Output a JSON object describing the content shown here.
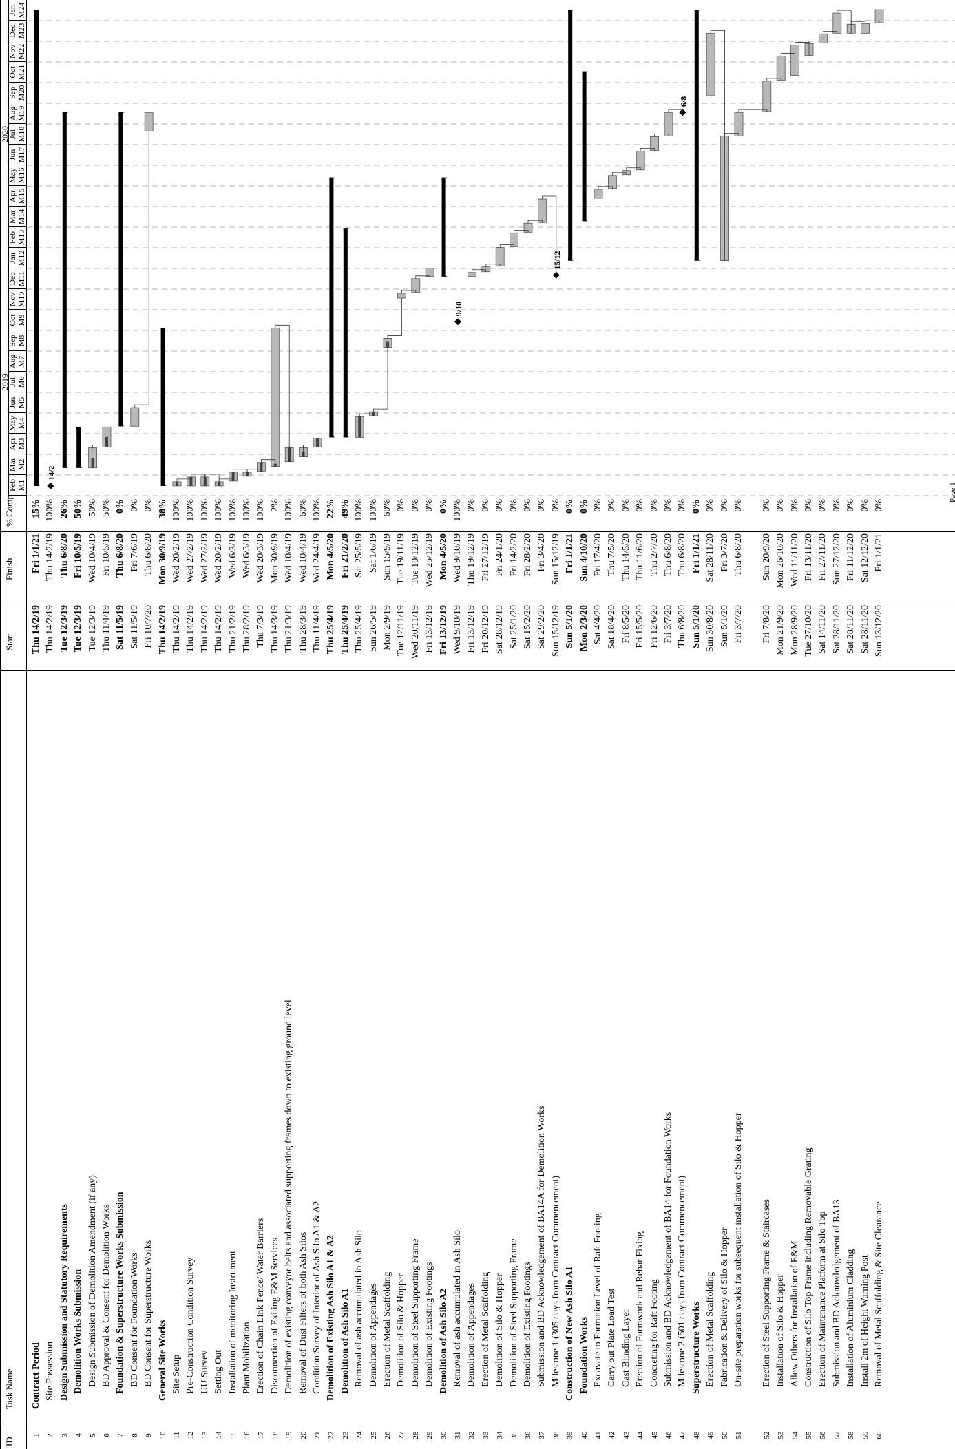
{
  "columns": {
    "id": "ID",
    "name": "Task Name",
    "start": "Start",
    "finish": "Finish",
    "comp": "% Comp."
  },
  "years": [
    "2019",
    "2020"
  ],
  "months": [
    {
      "m": "Feb",
      "n": "M1"
    },
    {
      "m": "Mar",
      "n": "M2"
    },
    {
      "m": "Apr",
      "n": "M3"
    },
    {
      "m": "May",
      "n": "M4"
    },
    {
      "m": "Jun",
      "n": "M5"
    },
    {
      "m": "Jul",
      "n": "M6"
    },
    {
      "m": "Aug",
      "n": "M7"
    },
    {
      "m": "Sep",
      "n": "M8"
    },
    {
      "m": "Oct",
      "n": "M9"
    },
    {
      "m": "Nov",
      "n": "M10"
    },
    {
      "m": "Dec",
      "n": "M11"
    },
    {
      "m": "Jan",
      "n": "M12"
    },
    {
      "m": "Feb",
      "n": "M13"
    },
    {
      "m": "Mar",
      "n": "M14"
    },
    {
      "m": "Apr",
      "n": "M15"
    },
    {
      "m": "May",
      "n": "M16"
    },
    {
      "m": "Jun",
      "n": "M17"
    },
    {
      "m": "Jul",
      "n": "M18"
    },
    {
      "m": "Aug",
      "n": "M19"
    },
    {
      "m": "Sep",
      "n": "M20"
    },
    {
      "m": "Oct",
      "n": "M21"
    },
    {
      "m": "Nov",
      "n": "M22"
    },
    {
      "m": "Dec",
      "n": "M23"
    },
    {
      "m": "Jan",
      "n": "M24"
    }
  ],
  "footer": "Page 1",
  "tasks": [
    {
      "id": "1",
      "name": "Contract Period",
      "start": "Thu 14/2/19",
      "finish": "Fri 1/1/21",
      "comp": "15%",
      "lvl": 0,
      "sum": true,
      "s": 0,
      "e": 687
    },
    {
      "id": "2",
      "name": "Site Possession",
      "start": "Thu 14/2/19",
      "finish": "Thu 14/2/19",
      "comp": "100%",
      "lvl": 1,
      "ms": true,
      "label": "14/2",
      "s": 0,
      "e": 0
    },
    {
      "id": "3",
      "name": "Design Submission and Statutory Requirements",
      "start": "Tue 12/3/19",
      "finish": "Thu 6/8/20",
      "comp": "26%",
      "lvl": 1,
      "sum": true,
      "s": 26,
      "e": 539
    },
    {
      "id": "4",
      "name": "Demolition Works Submission",
      "start": "Tue 12/3/19",
      "finish": "Fri 10/5/19",
      "comp": "50%",
      "lvl": 2,
      "sum": true,
      "s": 26,
      "e": 85
    },
    {
      "id": "5",
      "name": "Design Submission of Demolition Amendment (if any)",
      "start": "Tue 12/3/19",
      "finish": "Wed 10/4/19",
      "comp": "50%",
      "lvl": 3,
      "s": 26,
      "e": 55
    },
    {
      "id": "6",
      "name": "BD Approval & Consent for Demolition Works",
      "start": "Thu 11/4/19",
      "finish": "Fri 10/5/19",
      "comp": "50%",
      "lvl": 3,
      "s": 56,
      "e": 85
    },
    {
      "id": "7",
      "name": "Foundation & Superstructure Works Submission",
      "start": "Sat 11/5/19",
      "finish": "Thu 6/8/20",
      "comp": "0%",
      "lvl": 2,
      "sum": true,
      "s": 86,
      "e": 539
    },
    {
      "id": "8",
      "name": "BD Consent for Foundation Works",
      "start": "Sat 11/5/19",
      "finish": "Fri 7/6/19",
      "comp": "0%",
      "lvl": 3,
      "s": 86,
      "e": 113
    },
    {
      "id": "9",
      "name": "BD Consent for Superstructure Works",
      "start": "Fri 10/7/20",
      "finish": "Thu 6/8/20",
      "comp": "0%",
      "lvl": 3,
      "s": 512,
      "e": 539
    },
    {
      "id": "10",
      "name": "General Site Works",
      "start": "Thu 14/2/19",
      "finish": "Mon 30/9/19",
      "comp": "38%",
      "lvl": 1,
      "sum": true,
      "s": 0,
      "e": 228
    },
    {
      "id": "11",
      "name": "Site Setup",
      "start": "Thu 14/2/19",
      "finish": "Wed 20/2/19",
      "comp": "100%",
      "lvl": 2,
      "s": 0,
      "e": 6
    },
    {
      "id": "12",
      "name": "Pre-Construction Condition Survey",
      "start": "Thu 14/2/19",
      "finish": "Wed 27/2/19",
      "comp": "100%",
      "lvl": 2,
      "s": 0,
      "e": 13
    },
    {
      "id": "13",
      "name": "UU Survey",
      "start": "Thu 14/2/19",
      "finish": "Wed 27/2/19",
      "comp": "100%",
      "lvl": 2,
      "s": 0,
      "e": 13
    },
    {
      "id": "14",
      "name": "Setting Out",
      "start": "Thu 14/2/19",
      "finish": "Wed 20/2/19",
      "comp": "100%",
      "lvl": 2,
      "s": 0,
      "e": 6
    },
    {
      "id": "15",
      "name": "Installation of monitoring Instrument",
      "start": "Thu 21/2/19",
      "finish": "Wed 6/3/19",
      "comp": "100%",
      "lvl": 2,
      "s": 7,
      "e": 20
    },
    {
      "id": "16",
      "name": "Plant Mobilization",
      "start": "Thu 28/2/19",
      "finish": "Wed 6/3/19",
      "comp": "100%",
      "lvl": 2,
      "s": 14,
      "e": 20
    },
    {
      "id": "17",
      "name": "Erection of Chain Link Fence/ Water Barriers",
      "start": "Thu 7/3/19",
      "finish": "Wed 20/3/19",
      "comp": "100%",
      "lvl": 2,
      "s": 21,
      "e": 34
    },
    {
      "id": "18",
      "name": "Disconnection of Exiting E&M Services",
      "start": "Thu 14/3/19",
      "finish": "Mon 30/9/19",
      "comp": "2%",
      "lvl": 2,
      "s": 28,
      "e": 228
    },
    {
      "id": "19",
      "name": "Demolition of existing conveyor belts and associated supporting frames down to existing ground level",
      "start": "Thu 21/3/19",
      "finish": "Wed 10/4/19",
      "comp": "100%",
      "lvl": 2,
      "s": 35,
      "e": 55
    },
    {
      "id": "20",
      "name": "Removal of Dust Filters of both Ash Silos",
      "start": "Thu 28/3/19",
      "finish": "Wed 10/4/19",
      "comp": "60%",
      "lvl": 2,
      "s": 42,
      "e": 55
    },
    {
      "id": "21",
      "name": "Condition Survey of Interior of Ash Silo A1 & A2",
      "start": "Thu 11/4/19",
      "finish": "Wed 24/4/19",
      "comp": "100%",
      "lvl": 2,
      "s": 56,
      "e": 69
    },
    {
      "id": "22",
      "name": "Demolition of Existing Ash Silo A1 & A2",
      "start": "Thu 25/4/19",
      "finish": "Mon 4/5/20",
      "comp": "22%",
      "lvl": 1,
      "sum": true,
      "s": 70,
      "e": 445
    },
    {
      "id": "23",
      "name": "Demolition of Ash Silo A1",
      "start": "Thu 25/4/19",
      "finish": "Fri 21/2/20",
      "comp": "49%",
      "lvl": 2,
      "sum": true,
      "s": 70,
      "e": 372
    },
    {
      "id": "24",
      "name": "Removal of ash accumulated in Ash Silo",
      "start": "Thu 25/4/19",
      "finish": "Sat 25/5/19",
      "comp": "100%",
      "lvl": 3,
      "s": 70,
      "e": 100
    },
    {
      "id": "25",
      "name": "Demolition of Appendages",
      "start": "Sun 26/5/19",
      "finish": "Sat 1/6/19",
      "comp": "100%",
      "lvl": 3,
      "s": 101,
      "e": 107
    },
    {
      "id": "26",
      "name": "Erection of Metal Scaffolding",
      "start": "Mon 2/9/19",
      "finish": "Sun 15/9/19",
      "comp": "60%",
      "lvl": 3,
      "s": 200,
      "e": 213
    },
    {
      "id": "27",
      "name": "Demolition of Silo & Hopper",
      "start": "Tue 12/11/19",
      "finish": "Tue 19/11/19",
      "comp": "0%",
      "lvl": 3,
      "s": 271,
      "e": 278
    },
    {
      "id": "28",
      "name": "Demolition of Steel Supporting Frame",
      "start": "Wed 20/11/19",
      "finish": "Tue 10/12/19",
      "comp": "0%",
      "lvl": 3,
      "s": 279,
      "e": 299
    },
    {
      "id": "29",
      "name": "Demolition of Existing Footings",
      "start": "Fri 13/12/19",
      "finish": "Wed 25/12/19",
      "comp": "0%",
      "lvl": 3,
      "s": 302,
      "e": 314
    },
    {
      "id": "30",
      "name": "Demolition of Ash Silo A2",
      "start": "Fri 13/12/19",
      "finish": "Mon 4/5/20",
      "comp": "0%",
      "lvl": 2,
      "sum": true,
      "s": 302,
      "e": 445
    },
    {
      "id": "31",
      "name": "Removal of ash accumulated in Ash Silo",
      "start": "Wed 9/10/19",
      "finish": "Wed 9/10/19",
      "comp": "100%",
      "lvl": 3,
      "ms": true,
      "label": "9/10",
      "s": 237,
      "e": 237
    },
    {
      "id": "32",
      "name": "Demolition of Appendages",
      "start": "Fri 13/12/19",
      "finish": "Thu 19/12/19",
      "comp": "0%",
      "lvl": 3,
      "s": 302,
      "e": 308
    },
    {
      "id": "33",
      "name": "Erection of Metal Scaffolding",
      "start": "Fri 20/12/19",
      "finish": "Fri 27/12/19",
      "comp": "0%",
      "lvl": 3,
      "s": 309,
      "e": 316
    },
    {
      "id": "34",
      "name": "Demolition of Silo & Hopper",
      "start": "Sat 28/12/19",
      "finish": "Fri 24/1/20",
      "comp": "0%",
      "lvl": 3,
      "s": 317,
      "e": 344
    },
    {
      "id": "35",
      "name": "Demolition of Steel Supporting Frame",
      "start": "Sat 25/1/20",
      "finish": "Fri 14/2/20",
      "comp": "0%",
      "lvl": 3,
      "s": 345,
      "e": 365
    },
    {
      "id": "36",
      "name": "Demolition of Existing Footings",
      "start": "Sat 15/2/20",
      "finish": "Fri 28/2/20",
      "comp": "0%",
      "lvl": 3,
      "s": 366,
      "e": 379
    },
    {
      "id": "37",
      "name": "Submission and BD Acknowledgement of BA14A for Demolition Works",
      "start": "Sat 29/2/20",
      "finish": "Fri 3/4/20",
      "comp": "0%",
      "lvl": 3,
      "s": 380,
      "e": 414
    },
    {
      "id": "38",
      "name": "Milestone 1 (305 days from Contract Commencement)",
      "start": "Sun 15/12/19",
      "finish": "Sun 15/12/19",
      "comp": "0%",
      "lvl": 3,
      "ms": true,
      "label": "15/12",
      "s": 304,
      "e": 304
    },
    {
      "id": "39",
      "name": "Construction of New Ash Silo A1",
      "start": "Sun 5/1/20",
      "finish": "Fri 1/1/21",
      "comp": "0%",
      "lvl": 1,
      "sum": true,
      "s": 325,
      "e": 687
    },
    {
      "id": "40",
      "name": "Foundation Works",
      "start": "Mon 2/3/20",
      "finish": "Sun 4/10/20",
      "comp": "0%",
      "lvl": 2,
      "sum": true,
      "s": 382,
      "e": 598
    },
    {
      "id": "41",
      "name": "Excavate to Formation Level of Raft Footing",
      "start": "Sat 4/4/20",
      "finish": "Fri 17/4/20",
      "comp": "0%",
      "lvl": 3,
      "s": 415,
      "e": 428
    },
    {
      "id": "42",
      "name": "Carry out Plate Load Test",
      "start": "Sat 18/4/20",
      "finish": "Thu 7/5/20",
      "comp": "0%",
      "lvl": 3,
      "s": 429,
      "e": 448
    },
    {
      "id": "43",
      "name": "Cast Blinding Layer",
      "start": "Fri 8/5/20",
      "finish": "Thu 14/5/20",
      "comp": "0%",
      "lvl": 3,
      "s": 449,
      "e": 455
    },
    {
      "id": "44",
      "name": "Erection of Formwork and Rebar Fixing",
      "start": "Fri 15/5/20",
      "finish": "Thu 11/6/20",
      "comp": "0%",
      "lvl": 3,
      "s": 456,
      "e": 483
    },
    {
      "id": "45",
      "name": "Concreting for Raft Footing",
      "start": "Fri 12/6/20",
      "finish": "Thu 2/7/20",
      "comp": "0%",
      "lvl": 3,
      "s": 484,
      "e": 504
    },
    {
      "id": "46",
      "name": "Submission and BD Acknowledgement of BA14 for Foundation Works",
      "start": "Fri 3/7/20",
      "finish": "Thu 6/8/20",
      "comp": "0%",
      "lvl": 3,
      "s": 505,
      "e": 539
    },
    {
      "id": "47",
      "name": "Milestone 2 (501 days from Contract Commencement)",
      "start": "Thu 6/8/20",
      "finish": "Thu 6/8/20",
      "comp": "0%",
      "lvl": 3,
      "ms": true,
      "label": "6/8",
      "s": 539,
      "e": 539
    },
    {
      "id": "48",
      "name": "Superstructure Works",
      "start": "Sun 5/1/20",
      "finish": "Fri 1/1/21",
      "comp": "0%",
      "lvl": 2,
      "sum": true,
      "s": 325,
      "e": 687
    },
    {
      "id": "49",
      "name": "Erection of Metal Scaffolding",
      "start": "Sun 30/8/20",
      "finish": "Sat 28/11/20",
      "comp": "0%",
      "lvl": 3,
      "s": 563,
      "e": 653
    },
    {
      "id": "50",
      "name": "Fabrication & Delivery of Silo & Hopper",
      "start": "Sun 5/1/20",
      "finish": "Fri 3/7/20",
      "comp": "0%",
      "lvl": 3,
      "s": 325,
      "e": 505
    },
    {
      "id": "51",
      "name": "On-site preparation works for subsequent installation of Silo & Hopper",
      "start": "Fri 3/7/20",
      "finish": "Thu 6/8/20",
      "comp": "0%",
      "lvl": 3,
      "s": 505,
      "e": 539
    },
    {
      "id": "52",
      "name": "Erection of Steel Supporting Frame & Staircases",
      "start": "Fri 7/8/20",
      "finish": "Sun 20/9/20",
      "comp": "0%",
      "lvl": 3,
      "s": 540,
      "e": 584,
      "gap": true
    },
    {
      "id": "53",
      "name": "Installation of Silo & Hopper",
      "start": "Mon 21/9/20",
      "finish": "Mon 26/10/20",
      "comp": "0%",
      "lvl": 3,
      "s": 585,
      "e": 620
    },
    {
      "id": "54",
      "name": "Allow Others for Installation of E&M",
      "start": "Mon 28/9/20",
      "finish": "Wed 11/11/20",
      "comp": "0%",
      "lvl": 3,
      "s": 592,
      "e": 636
    },
    {
      "id": "55",
      "name": "Construction of Silo Top Frame including Removable Grating",
      "start": "Tue 27/10/20",
      "finish": "Fri 13/11/20",
      "comp": "0%",
      "lvl": 3,
      "s": 621,
      "e": 638
    },
    {
      "id": "56",
      "name": "Erection of Maintenance Platform at Silo Top",
      "start": "Sat 14/11/20",
      "finish": "Fri 27/11/20",
      "comp": "0%",
      "lvl": 3,
      "s": 639,
      "e": 652
    },
    {
      "id": "57",
      "name": "Submission and BD Acknowledgement of BA13",
      "start": "Sat 28/11/20",
      "finish": "Sun 27/12/20",
      "comp": "0%",
      "lvl": 3,
      "s": 653,
      "e": 682
    },
    {
      "id": "58",
      "name": "Installation of Aluminium Cladding",
      "start": "Sat 28/11/20",
      "finish": "Fri 11/12/20",
      "comp": "0%",
      "lvl": 3,
      "s": 653,
      "e": 666
    },
    {
      "id": "59",
      "name": "Install 2m of Height Warning Post",
      "start": "Sat 28/11/20",
      "finish": "Sat 12/12/20",
      "comp": "0%",
      "lvl": 3,
      "s": 653,
      "e": 667
    },
    {
      "id": "60",
      "name": "Removal of Metal Scaffolding & Site Clearance",
      "start": "Sun 13/12/20",
      "finish": "Fri 1/1/21",
      "comp": "0%",
      "lvl": 3,
      "s": 668,
      "e": 687
    }
  ]
}
